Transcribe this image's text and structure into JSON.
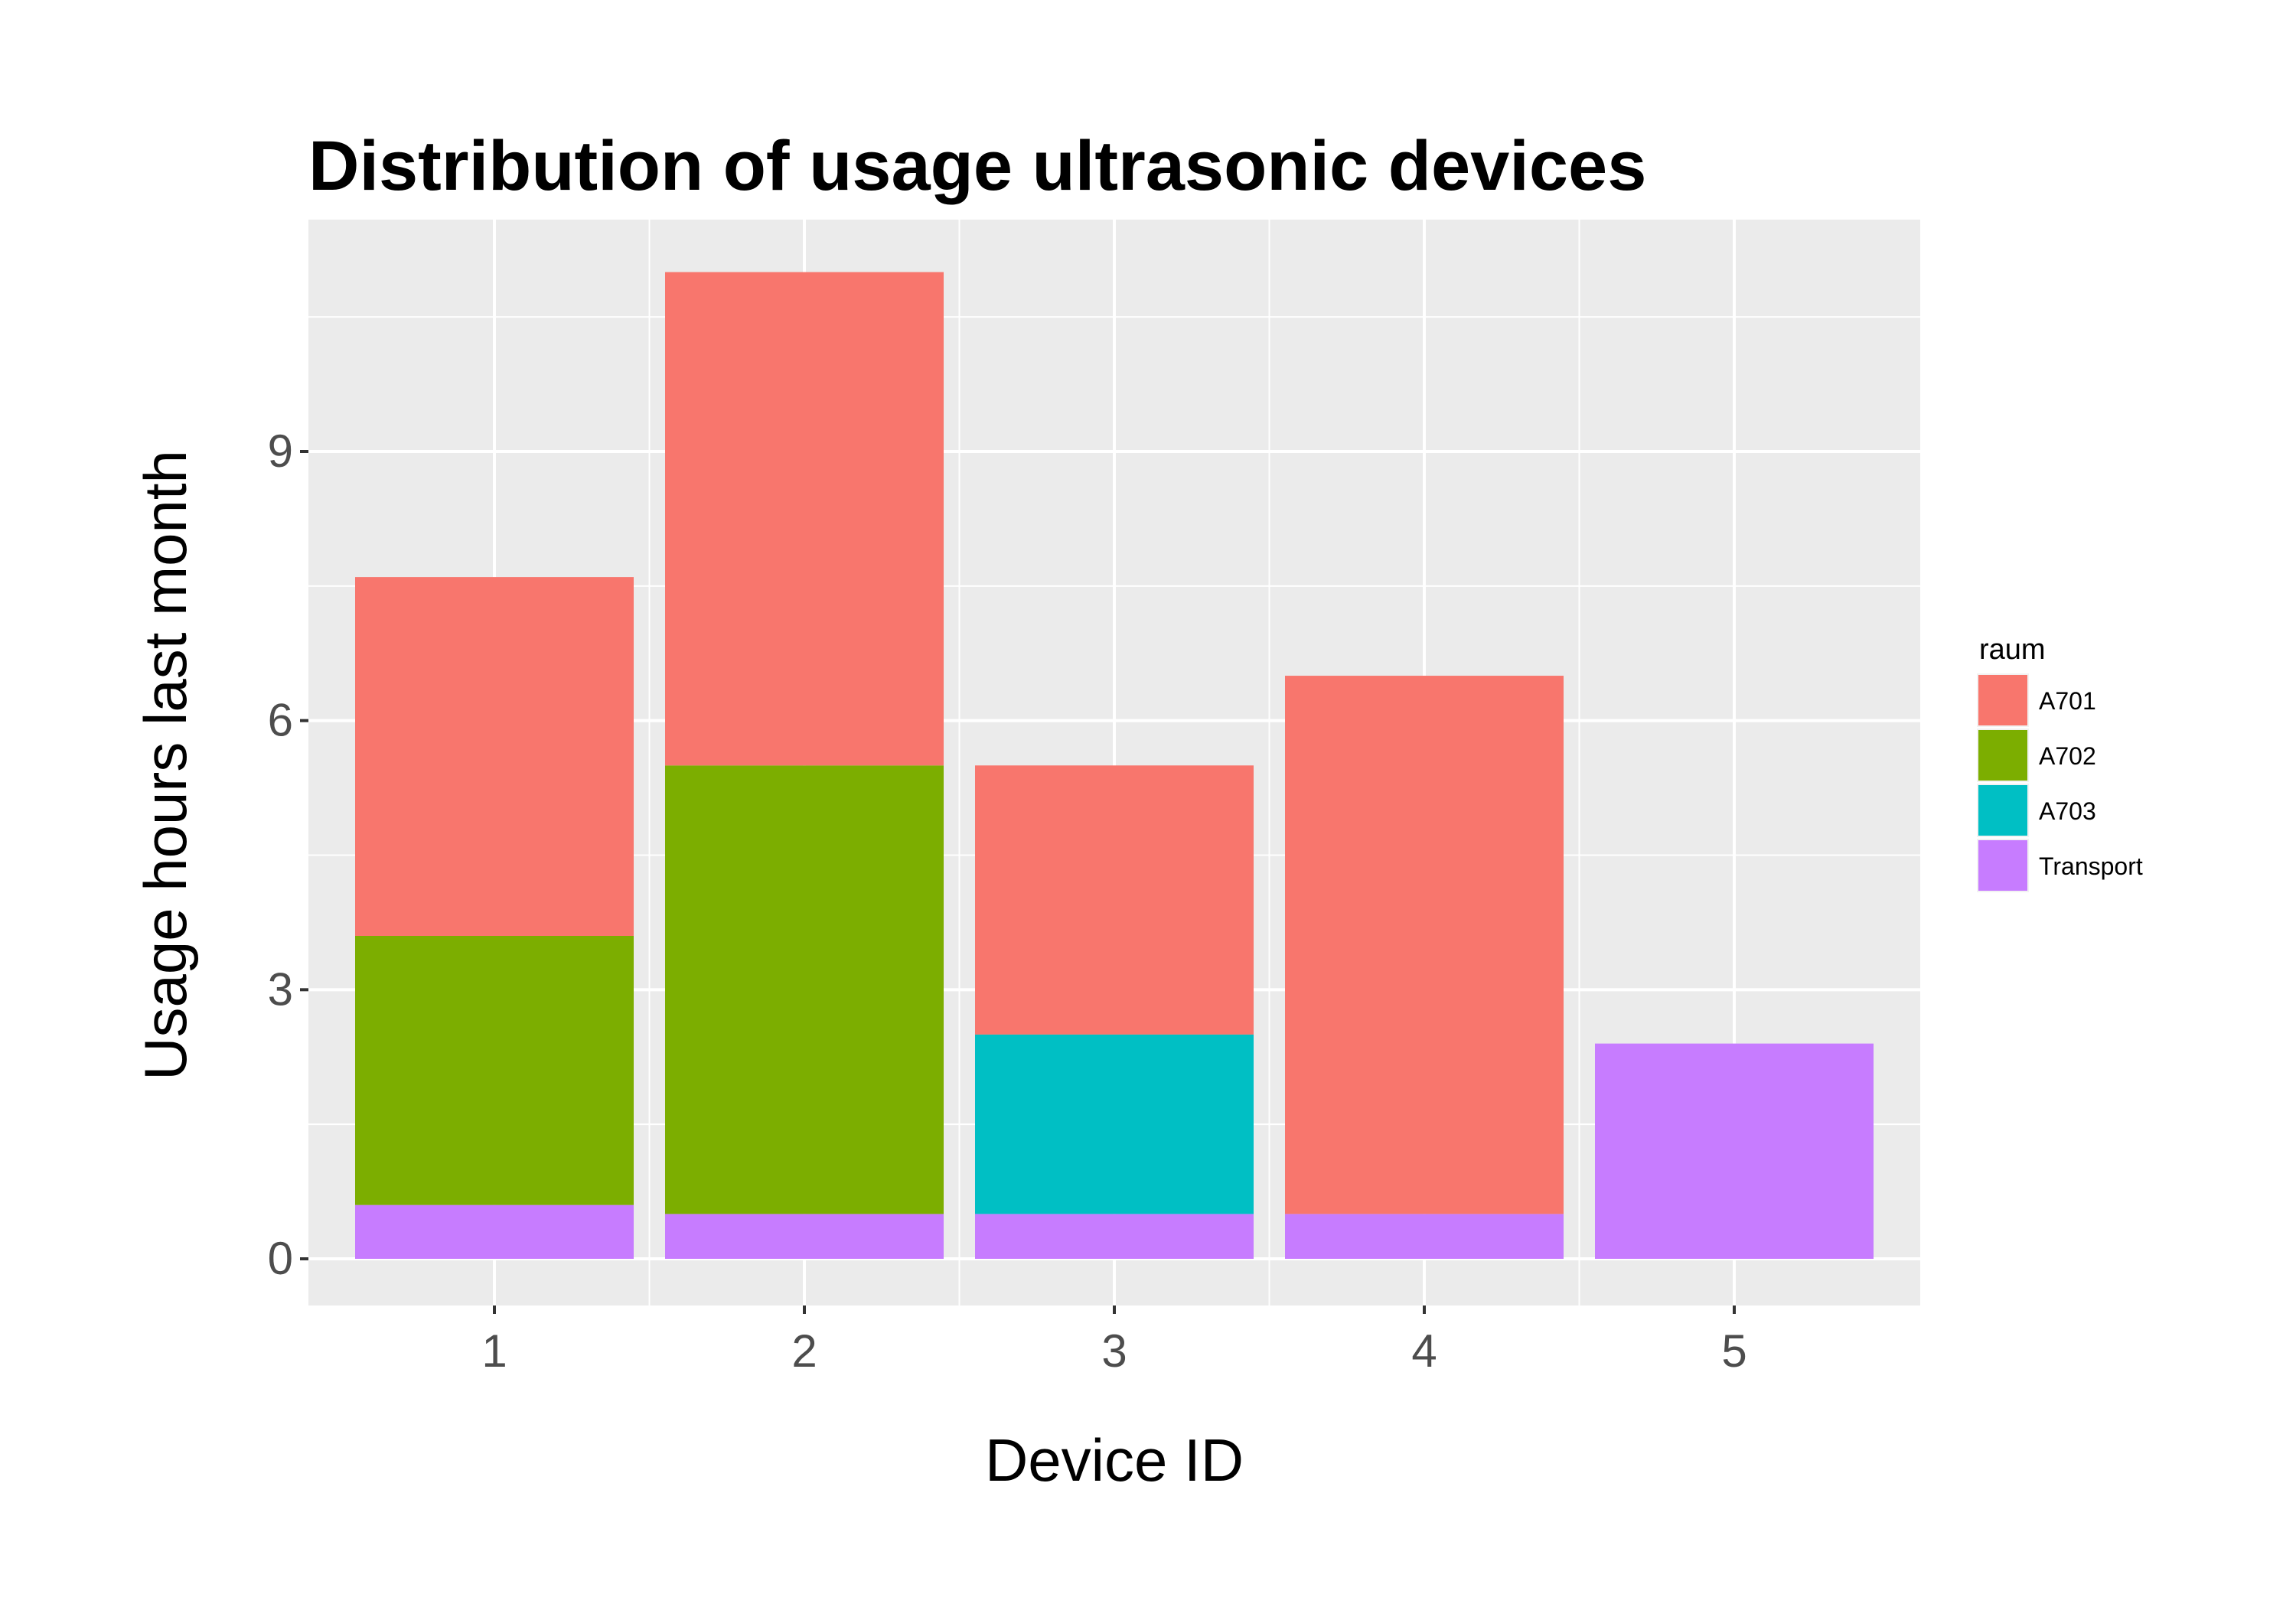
{
  "chart_data": {
    "type": "bar",
    "stacked": true,
    "title": "Distribution of usage ultrasonic devices",
    "xlabel": "Device ID",
    "ylabel": "Usage hours last month",
    "categories": [
      "1",
      "2",
      "3",
      "4",
      "5"
    ],
    "ylim": [
      -1.05,
      11.6
    ],
    "yticks": [
      0,
      3,
      6,
      9
    ],
    "grid": true,
    "legend": {
      "title": "raum",
      "placement": "right"
    },
    "series": [
      {
        "name": "Transport",
        "color": "#C77CFF",
        "values": [
          0.6,
          0.5,
          0.5,
          0.5,
          2.4
        ]
      },
      {
        "name": "A703",
        "color": "#00BFC4",
        "values": [
          0,
          0,
          2.0,
          0,
          0
        ]
      },
      {
        "name": "A702",
        "color": "#7CAE00",
        "values": [
          3.0,
          5.0,
          0,
          0,
          0
        ]
      },
      {
        "name": "A701",
        "color": "#F8766D",
        "values": [
          4.0,
          5.5,
          3.0,
          6.0,
          0
        ]
      }
    ],
    "legend_order": [
      "A701",
      "A702",
      "A703",
      "Transport"
    ]
  }
}
